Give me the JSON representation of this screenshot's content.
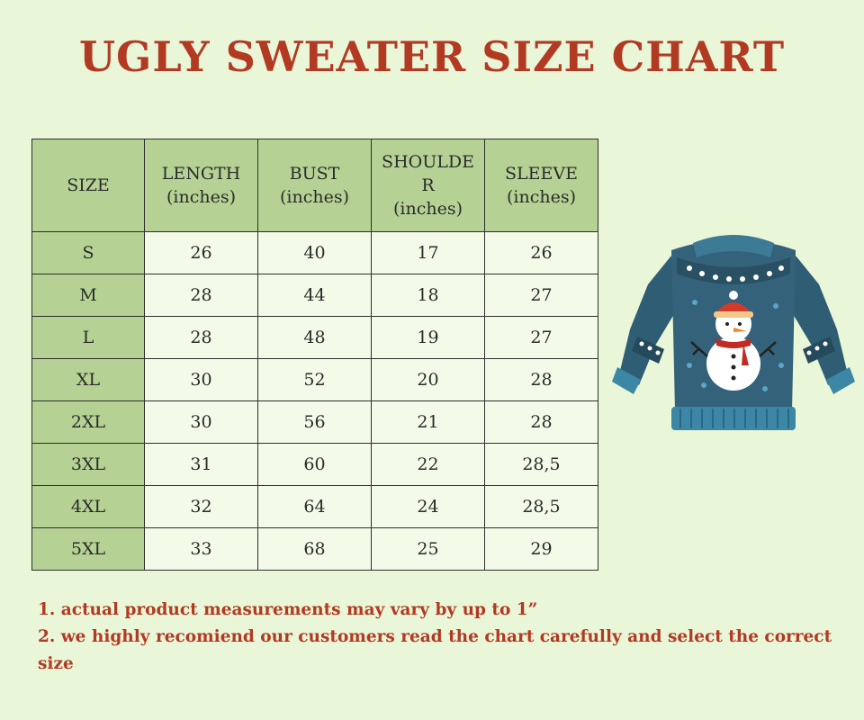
{
  "title": "UGLY SWEATER SIZE CHART",
  "table": {
    "headers": [
      "SIZE",
      "LENGTH (inches)",
      "BUST (inches)",
      "SHOULDER (inches)",
      "SLEEVE (inches)"
    ],
    "header_lines": [
      [
        "SIZE"
      ],
      [
        "LENGTH",
        "(inches)"
      ],
      [
        "BUST",
        "(inches)"
      ],
      [
        "SHOULDE",
        "R",
        "(inches)"
      ],
      [
        "SLEEVE",
        "(inches)"
      ]
    ],
    "rows": [
      [
        "S",
        "26",
        "40",
        "17",
        "26"
      ],
      [
        "M",
        "28",
        "44",
        "18",
        "27"
      ],
      [
        "L",
        "28",
        "48",
        "19",
        "27"
      ],
      [
        "XL",
        "30",
        "52",
        "20",
        "28"
      ],
      [
        "2XL",
        "30",
        "56",
        "21",
        "28"
      ],
      [
        "3XL",
        "31",
        "60",
        "22",
        "28,5"
      ],
      [
        "4XL",
        "32",
        "64",
        "24",
        "28,5"
      ],
      [
        "5XL",
        "33",
        "68",
        "25",
        "29"
      ]
    ]
  },
  "notes": [
    "1. actual product measurements may vary by up to 1”",
    "2. we highly recomiend our customers read the chart carefully and select the correct size"
  ],
  "colors": {
    "background": "#eaf6d8",
    "accent": "#b23a22",
    "header_fill": "#b5d294",
    "sweater": "#2f5d74"
  },
  "chart_data": {
    "type": "table",
    "title": "UGLY SWEATER SIZE CHART",
    "columns": [
      "SIZE",
      "LENGTH (inches)",
      "BUST (inches)",
      "SHOULDER (inches)",
      "SLEEVE (inches)"
    ],
    "categories": [
      "S",
      "M",
      "L",
      "XL",
      "2XL",
      "3XL",
      "4XL",
      "5XL"
    ],
    "series": [
      {
        "name": "LENGTH (inches)",
        "values": [
          26,
          28,
          28,
          30,
          30,
          31,
          32,
          33
        ]
      },
      {
        "name": "BUST (inches)",
        "values": [
          40,
          44,
          48,
          52,
          56,
          60,
          64,
          68
        ]
      },
      {
        "name": "SHOULDER (inches)",
        "values": [
          17,
          18,
          19,
          20,
          21,
          22,
          24,
          25
        ]
      },
      {
        "name": "SLEEVE (inches)",
        "values": [
          26,
          27,
          27,
          28,
          28,
          28.5,
          28.5,
          29
        ]
      }
    ]
  }
}
